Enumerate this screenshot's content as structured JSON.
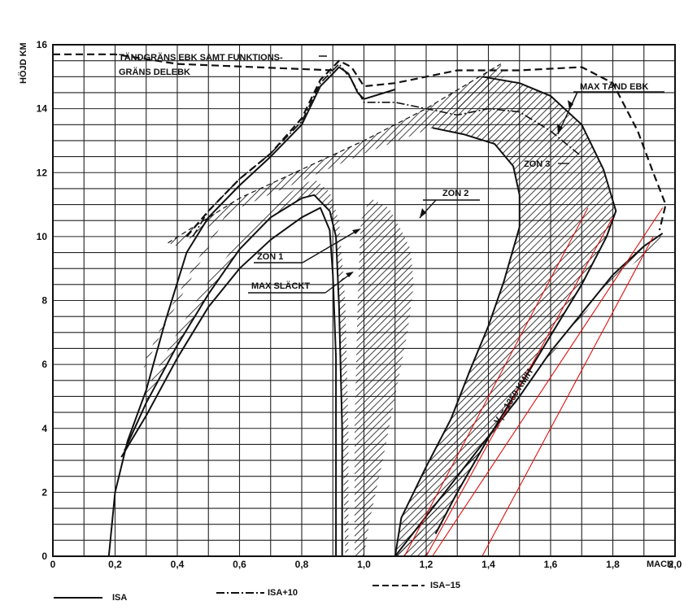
{
  "chart_data": {
    "type": "line",
    "title": "",
    "xlabel": "MACH",
    "ylabel": "HÖJD KM",
    "xlim": [
      0,
      2.0
    ],
    "ylim": [
      0,
      16
    ],
    "x_ticks": [
      "0",
      "0,2",
      "0,4",
      "0,6",
      "0,8",
      "1,0",
      "1,2",
      "1,4",
      "1,6",
      "1,8",
      "2,0"
    ],
    "y_ticks": [
      "0",
      "2",
      "4",
      "6",
      "8",
      "10",
      "12",
      "14",
      "16"
    ],
    "x_tick_values": [
      0,
      0.2,
      0.4,
      0.6,
      0.8,
      1.0,
      1.2,
      1.4,
      1.6,
      1.8,
      2.0
    ],
    "y_tick_values": [
      0,
      2,
      4,
      6,
      8,
      10,
      12,
      14,
      16
    ],
    "grid": {
      "x_step": 0.1,
      "y_step": 0.5
    },
    "legend": [
      {
        "label": "ISA",
        "style": "solid"
      },
      {
        "label": "ISA+10",
        "style": "dashdot"
      },
      {
        "label": "ISA−15",
        "style": "dashed"
      }
    ],
    "annotations": {
      "tandgrans_line1": "TÄNDGRÄNS EBK SAMT FUNKTIONS-",
      "tandgrans_line2": "GRÄNS DELEBK",
      "max_tand": "MAX TÄND EBK",
      "zon1": "ZON 1",
      "zon2": "ZON 2",
      "zon3": "ZON 3",
      "max_slackt": "MAX SLÄCKT",
      "vi_label": "V",
      "vi_sub": "i",
      "vi_value": " = 1350 KM/H"
    },
    "series": [
      {
        "style": "solid",
        "role": "envelope_isa",
        "points": [
          [
            0.18,
            0
          ],
          [
            0.2,
            2
          ],
          [
            0.24,
            3.6
          ],
          [
            0.3,
            5.2
          ],
          [
            0.36,
            7.3
          ],
          [
            0.43,
            9.5
          ],
          [
            0.5,
            10.6
          ],
          [
            0.6,
            11.6
          ],
          [
            0.7,
            12.5
          ],
          [
            0.8,
            13.5
          ],
          [
            0.86,
            14.7
          ],
          [
            0.9,
            15.1
          ],
          [
            0.92,
            15.3
          ],
          [
            0.95,
            15.1
          ],
          [
            0.98,
            14.5
          ],
          [
            1.0,
            14.3
          ],
          [
            1.1,
            14.6
          ]
        ]
      },
      {
        "style": "dashdot",
        "role": "envelope_isa_plus10",
        "points": [
          [
            0.45,
            10
          ],
          [
            0.5,
            10.8
          ],
          [
            0.6,
            11.8
          ],
          [
            0.7,
            12.6
          ],
          [
            0.8,
            13.6
          ],
          [
            0.86,
            14.8
          ],
          [
            0.92,
            15.4
          ],
          [
            0.96,
            14.9
          ],
          [
            1.0,
            14.2
          ],
          [
            1.1,
            14.2
          ],
          [
            1.2,
            14.0
          ],
          [
            1.3,
            13.8
          ],
          [
            1.4,
            14.0
          ],
          [
            1.5,
            13.9
          ],
          [
            1.6,
            13.3
          ],
          [
            1.7,
            12.5
          ]
        ]
      },
      {
        "style": "dashed",
        "role": "envelope_isa_minus15",
        "points": [
          [
            0.43,
            10
          ],
          [
            0.5,
            10.8
          ],
          [
            0.6,
            11.8
          ],
          [
            0.7,
            12.6
          ],
          [
            0.8,
            13.7
          ],
          [
            0.86,
            14.9
          ],
          [
            0.92,
            15.5
          ],
          [
            0.96,
            15.3
          ],
          [
            1.0,
            14.7
          ],
          [
            1.1,
            14.8
          ],
          [
            1.3,
            15.2
          ],
          [
            1.5,
            15.2
          ],
          [
            1.7,
            15.3
          ],
          [
            1.8,
            14.8
          ],
          [
            1.88,
            13.3
          ],
          [
            1.93,
            12.0
          ],
          [
            1.97,
            11.0
          ],
          [
            1.95,
            10.2
          ]
        ]
      },
      {
        "style": "dashed",
        "role": "tandgrans",
        "points": [
          [
            0,
            15.7
          ],
          [
            0.2,
            15.7
          ],
          [
            0.4,
            15.4
          ],
          [
            0.9,
            15.2
          ]
        ]
      },
      {
        "style": "dashed_thin",
        "role": "tandgrans_diagonal",
        "points": [
          [
            0.37,
            9.8
          ],
          [
            0.6,
            11.2
          ],
          [
            1.0,
            13.0
          ],
          [
            1.2,
            14.0
          ],
          [
            1.44,
            15.4
          ]
        ]
      },
      {
        "style": "solid",
        "role": "zon1_outer",
        "points": [
          [
            0.23,
            3.3
          ],
          [
            0.3,
            4.8
          ],
          [
            0.4,
            6.6
          ],
          [
            0.5,
            8.2
          ],
          [
            0.6,
            9.6
          ],
          [
            0.7,
            10.6
          ],
          [
            0.8,
            11.2
          ],
          [
            0.84,
            11.3
          ],
          [
            0.89,
            10.8
          ],
          [
            0.91,
            10
          ],
          [
            0.92,
            7.8
          ],
          [
            0.93,
            4
          ],
          [
            0.93,
            0
          ]
        ]
      },
      {
        "style": "solid",
        "role": "max_slackt",
        "points": [
          [
            0.22,
            3.1
          ],
          [
            0.3,
            4.4
          ],
          [
            0.4,
            6.2
          ],
          [
            0.5,
            7.8
          ],
          [
            0.6,
            9.0
          ],
          [
            0.7,
            9.9
          ],
          [
            0.8,
            10.6
          ],
          [
            0.86,
            10.9
          ],
          [
            0.89,
            10.2
          ],
          [
            0.9,
            8.8
          ],
          [
            0.91,
            6.2
          ],
          [
            0.91,
            0
          ]
        ]
      },
      {
        "style": "solid",
        "role": "zon3_left",
        "points": [
          [
            1.1,
            0
          ],
          [
            1.12,
            1.2
          ],
          [
            1.2,
            2.8
          ],
          [
            1.28,
            4.3
          ],
          [
            1.34,
            5.8
          ],
          [
            1.4,
            7.2
          ],
          [
            1.45,
            8.6
          ],
          [
            1.5,
            10.3
          ],
          [
            1.5,
            11.3
          ],
          [
            1.48,
            12.2
          ],
          [
            1.42,
            12.9
          ],
          [
            1.32,
            13.2
          ],
          [
            1.22,
            13.4
          ]
        ]
      },
      {
        "style": "solid",
        "role": "zon3_right",
        "points": [
          [
            1.23,
            0.7
          ],
          [
            1.3,
            2.0
          ],
          [
            1.4,
            3.7
          ],
          [
            1.5,
            5.3
          ],
          [
            1.6,
            6.9
          ],
          [
            1.7,
            8.5
          ],
          [
            1.78,
            10.0
          ],
          [
            1.81,
            10.8
          ],
          [
            1.77,
            12.1
          ],
          [
            1.7,
            13.5
          ],
          [
            1.6,
            14.4
          ],
          [
            1.5,
            14.8
          ],
          [
            1.38,
            15.0
          ]
        ]
      },
      {
        "style": "solid",
        "role": "vi_1350",
        "points": [
          [
            1.1,
            0
          ],
          [
            1.3,
            2.5
          ],
          [
            1.5,
            5.0
          ],
          [
            1.6,
            6.4
          ],
          [
            1.7,
            7.6
          ],
          [
            1.8,
            8.8
          ],
          [
            1.9,
            9.7
          ],
          [
            1.96,
            10.1
          ]
        ]
      },
      {
        "style": "red",
        "role": "red_lines",
        "lines": [
          [
            [
              1.13,
              0
            ],
            [
              1.72,
              10.9
            ]
          ],
          [
            [
              1.2,
              0
            ],
            [
              1.8,
              10.6
            ]
          ],
          [
            [
              1.22,
              0
            ],
            [
              1.96,
              10.9
            ]
          ],
          [
            [
              1.38,
              0
            ],
            [
              1.93,
              10.0
            ]
          ]
        ]
      }
    ]
  }
}
